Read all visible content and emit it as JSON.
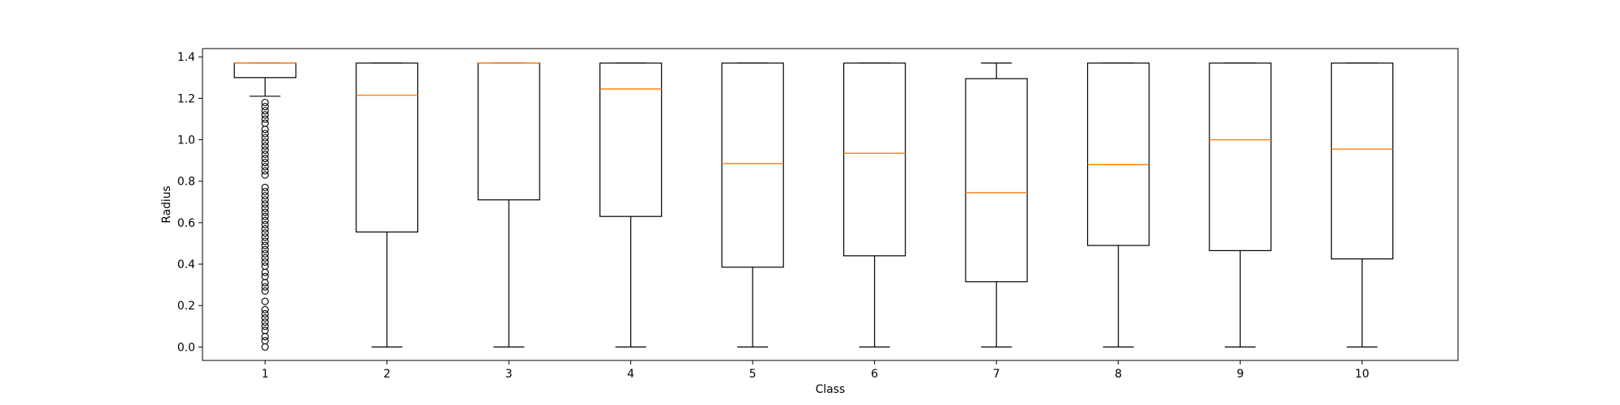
{
  "chart_data": {
    "type": "boxplot",
    "title": "",
    "xlabel": "Class",
    "ylabel": "Radius",
    "categories": [
      "1",
      "2",
      "3",
      "4",
      "5",
      "6",
      "7",
      "8",
      "9",
      "10"
    ],
    "ylim": [
      -0.065,
      1.44
    ],
    "yticks": [
      0.0,
      0.2,
      0.4,
      0.6,
      0.8,
      1.0,
      1.2,
      1.4
    ],
    "ytick_labels": [
      "0.0",
      "0.2",
      "0.4",
      "0.6",
      "0.8",
      "1.0",
      "1.2",
      "1.4"
    ],
    "grid": false,
    "colors": {
      "box": "#000000",
      "median": "#ff7f0e",
      "flier": "#000000"
    },
    "boxes": [
      {
        "category": "1",
        "whislo": 1.21,
        "q1": 1.3,
        "med": 1.37,
        "q3": 1.37,
        "whishi": 1.37,
        "fliers": [
          1.18,
          1.16,
          1.14,
          1.12,
          1.1,
          1.08,
          1.05,
          1.03,
          1.01,
          0.99,
          0.97,
          0.95,
          0.93,
          0.91,
          0.89,
          0.87,
          0.85,
          0.83,
          0.77,
          0.75,
          0.73,
          0.71,
          0.69,
          0.67,
          0.65,
          0.63,
          0.61,
          0.59,
          0.57,
          0.55,
          0.53,
          0.51,
          0.49,
          0.47,
          0.45,
          0.43,
          0.41,
          0.39,
          0.36,
          0.34,
          0.31,
          0.29,
          0.27,
          0.22,
          0.18,
          0.16,
          0.14,
          0.12,
          0.1,
          0.08,
          0.05,
          0.03,
          0.0
        ]
      },
      {
        "category": "2",
        "whislo": 0.0,
        "q1": 0.555,
        "med": 1.215,
        "q3": 1.37,
        "whishi": 1.37,
        "fliers": []
      },
      {
        "category": "3",
        "whislo": 0.0,
        "q1": 0.71,
        "med": 1.37,
        "q3": 1.37,
        "whishi": 1.37,
        "fliers": []
      },
      {
        "category": "4",
        "whislo": 0.0,
        "q1": 0.63,
        "med": 1.245,
        "q3": 1.37,
        "whishi": 1.37,
        "fliers": []
      },
      {
        "category": "5",
        "whislo": 0.0,
        "q1": 0.385,
        "med": 0.885,
        "q3": 1.37,
        "whishi": 1.37,
        "fliers": []
      },
      {
        "category": "6",
        "whislo": 0.0,
        "q1": 0.44,
        "med": 0.935,
        "q3": 1.37,
        "whishi": 1.37,
        "fliers": []
      },
      {
        "category": "7",
        "whislo": 0.0,
        "q1": 0.315,
        "med": 0.745,
        "q3": 1.295,
        "whishi": 1.37,
        "fliers": []
      },
      {
        "category": "8",
        "whislo": 0.0,
        "q1": 0.49,
        "med": 0.88,
        "q3": 1.37,
        "whishi": 1.37,
        "fliers": []
      },
      {
        "category": "9",
        "whislo": 0.0,
        "q1": 0.465,
        "med": 1.0,
        "q3": 1.37,
        "whishi": 1.37,
        "fliers": []
      },
      {
        "category": "10",
        "whislo": 0.0,
        "q1": 0.425,
        "med": 0.955,
        "q3": 1.37,
        "whishi": 1.37,
        "fliers": []
      }
    ]
  }
}
